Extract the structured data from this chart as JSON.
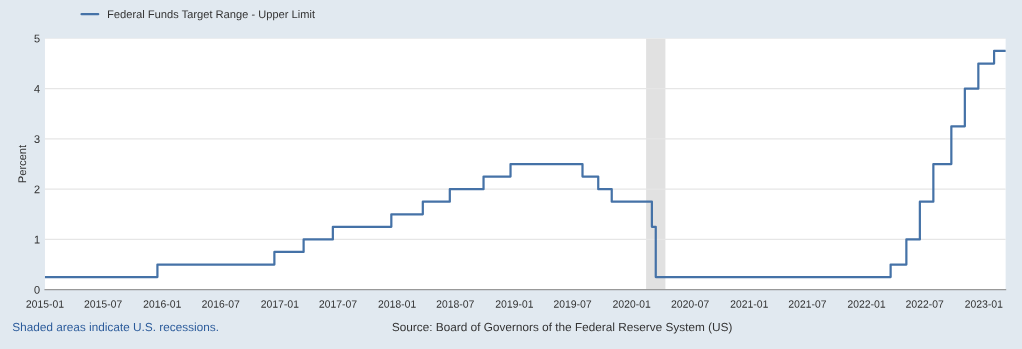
{
  "chart_data": {
    "type": "step",
    "ylabel": "Percent",
    "x": [
      "2015-01-01",
      "2015-12-17",
      "2016-12-15",
      "2017-03-16",
      "2017-06-15",
      "2017-12-14",
      "2018-03-22",
      "2018-06-14",
      "2018-09-27",
      "2018-12-20",
      "2019-08-01",
      "2019-09-19",
      "2019-10-31",
      "2020-03-04",
      "2020-03-16",
      "2022-03-17",
      "2022-05-05",
      "2022-06-16",
      "2022-07-28",
      "2022-09-22",
      "2022-11-03",
      "2022-12-15",
      "2023-02-02",
      "2023-03-10"
    ],
    "series": [
      {
        "name": "Federal Funds Target Range - Upper Limit",
        "color": "#4572a7",
        "values": [
          0.25,
          0.5,
          0.75,
          1.0,
          1.25,
          1.5,
          1.75,
          2.0,
          2.25,
          2.5,
          2.25,
          2.0,
          1.75,
          1.25,
          0.25,
          0.5,
          1.0,
          1.75,
          2.5,
          3.25,
          4.0,
          4.5,
          4.75,
          4.75
        ]
      }
    ],
    "xlim": [
      "2015-01-01",
      "2023-03-10"
    ],
    "xticks": [
      "2015-01",
      "2015-07",
      "2016-01",
      "2016-07",
      "2017-01",
      "2017-07",
      "2018-01",
      "2018-07",
      "2019-01",
      "2019-07",
      "2020-01",
      "2020-07",
      "2021-01",
      "2021-07",
      "2022-01",
      "2022-07",
      "2023-01"
    ],
    "ylim": [
      0,
      5
    ],
    "yticks": [
      0,
      1,
      2,
      3,
      4,
      5
    ],
    "bands": [
      {
        "axis": "x",
        "from": "2020-02-15",
        "to": "2020-04-15",
        "color": "#e1e1e1"
      }
    ],
    "grid": "y",
    "legend": "top left",
    "annotations": [
      "Shaded areas indicate U.S. recessions.",
      "Source: Board of Governors of the Federal Reserve System (US)"
    ]
  }
}
